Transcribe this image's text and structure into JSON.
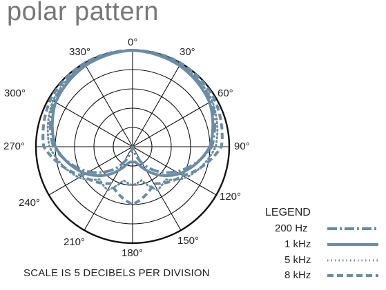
{
  "chart_data": {
    "type": "polar",
    "title": "polar pattern",
    "angle_labels": [
      "0°",
      "30°",
      "60°",
      "90°",
      "120°",
      "150°",
      "180°",
      "210°",
      "240°",
      "270°",
      "300°",
      "330°"
    ],
    "scale_note": "SCALE IS 5 DECIBELS PER DIVISION",
    "rings": 5,
    "legend_title": "LEGEND",
    "legend_placement": "bottom-right",
    "series": [
      {
        "name": "200 Hz",
        "style": "dash-dot",
        "color": "#6b8ca3",
        "angles": [
          0,
          30,
          60,
          90,
          120,
          150,
          160,
          170,
          180,
          190,
          200,
          210,
          240,
          270,
          300,
          330
        ],
        "levels": [
          0,
          -0.5,
          -1.5,
          -4.5,
          -12,
          -20,
          -23,
          -25,
          -27,
          -25,
          -23,
          -20,
          -12,
          -4.5,
          -1.5,
          -0.5
        ]
      },
      {
        "name": "1 kHz",
        "style": "solid",
        "color": "#6b8ca3",
        "angles": [
          0,
          30,
          60,
          90,
          120,
          150,
          160,
          170,
          180,
          190,
          200,
          210,
          240,
          270,
          300,
          330
        ],
        "levels": [
          0,
          -0.7,
          -2,
          -5,
          -11,
          -18,
          -20,
          -21,
          -21,
          -21,
          -20,
          -18,
          -11,
          -5,
          -2,
          -0.7
        ]
      },
      {
        "name": "5 kHz",
        "style": "dotted",
        "color": "#6b8ca3",
        "angles": [
          0,
          30,
          60,
          90,
          120,
          135,
          150,
          165,
          180,
          195,
          210,
          225,
          240,
          270,
          300,
          330
        ],
        "levels": [
          0,
          -0.3,
          -1.2,
          -3.5,
          -9,
          -13,
          -12,
          -16,
          -15,
          -16,
          -12,
          -13,
          -9,
          -3.5,
          -1.2,
          -0.3
        ]
      },
      {
        "name": "8 kHz",
        "style": "dashed",
        "color": "#6b8ca3",
        "angles": [
          0,
          30,
          60,
          90,
          120,
          150,
          165,
          180,
          195,
          210,
          240,
          270,
          300,
          330
        ],
        "levels": [
          0,
          0,
          -0.5,
          -2,
          -10,
          -14,
          -12,
          -10,
          -12,
          -14,
          -10,
          -2,
          -0.5,
          0
        ]
      }
    ]
  }
}
